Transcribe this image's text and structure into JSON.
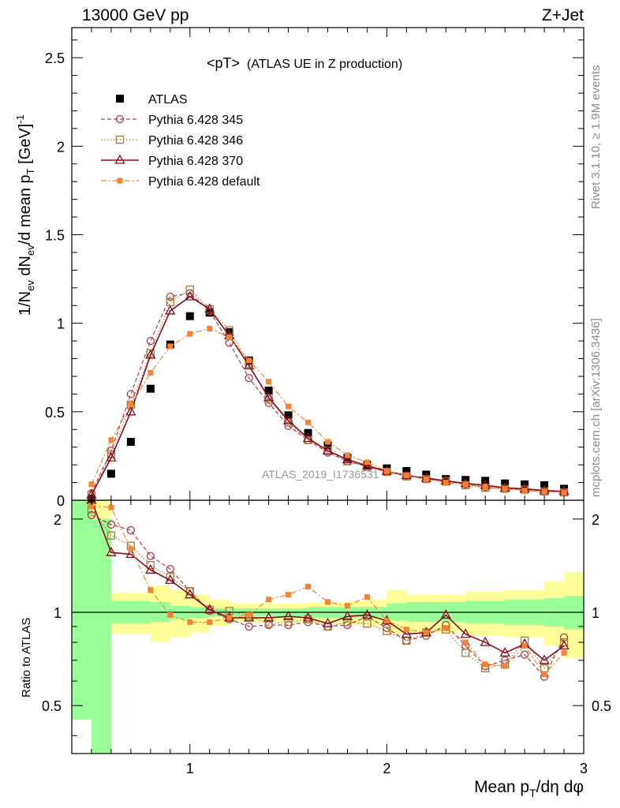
{
  "header": {
    "energy_label": "13000 GeV pp",
    "process_label": "Z+Jet",
    "title": "<pT>",
    "subtitle": "(ATLAS UE in Z production)",
    "rivet_label": "Rivet 3.1.10, ≥ 1.9M events",
    "mcplots_label": "mcplots.cern.ch [arXiv:1306.3436]",
    "analysis_label": "ATLAS_2019_I1736531"
  },
  "axes": {
    "top_ylabel": "1/N_ev dN_ev/d mean p_T [GeV]^-1",
    "bottom_ylabel": "Ratio to ATLAS",
    "xlabel": "Mean p_T/dη dφ",
    "x_ticks": [
      "1",
      "2",
      "3"
    ],
    "top_y_ticks": [
      "0",
      "0.5",
      "1",
      "1.5",
      "2",
      "2.5"
    ],
    "bottom_y_ticks": [
      "0.5",
      "1",
      "2"
    ]
  },
  "legend": {
    "items": [
      {
        "label": "ATLAS",
        "color": "#000000",
        "marker": "square-filled"
      },
      {
        "label": "Pythia 6.428 345",
        "color": "#b03a48",
        "marker": "circle-open"
      },
      {
        "label": "Pythia 6.428 346",
        "color": "#a67c3a",
        "marker": "square-open"
      },
      {
        "label": "Pythia 6.428 370",
        "color": "#8b0a1e",
        "marker": "triangle-open"
      },
      {
        "label": "Pythia 6.428 default",
        "color": "#f58331",
        "marker": "square-filled-small"
      }
    ]
  },
  "chart_data": {
    "type": "line",
    "x": [
      0.5,
      0.6,
      0.7,
      0.8,
      0.9,
      1.0,
      1.1,
      1.2,
      1.3,
      1.4,
      1.5,
      1.6,
      1.7,
      1.8,
      1.9,
      2.0,
      2.1,
      2.2,
      2.3,
      2.4,
      2.5,
      2.6,
      2.7,
      2.8,
      2.9
    ],
    "xlim": [
      0.4,
      3.0
    ],
    "ylim": [
      0,
      2.67
    ],
    "ratio_ylim": [
      0.35,
      2.3
    ],
    "ratio_scale": "log",
    "series": [
      {
        "name": "ATLAS",
        "color": "#000000",
        "marker": "square-filled",
        "line": "none",
        "values": [
          0.01,
          0.15,
          0.33,
          0.63,
          0.88,
          1.04,
          1.06,
          0.95,
          0.79,
          0.62,
          0.48,
          0.38,
          0.31,
          0.24,
          0.2,
          0.18,
          0.165,
          0.145,
          0.12,
          0.115,
          0.11,
          0.095,
          0.09,
          0.085,
          0.065
        ]
      },
      {
        "name": "Pythia 6.428 345",
        "color": "#b03a48",
        "marker": "circle-open",
        "line": "dash",
        "values": [
          0.04,
          0.28,
          0.6,
          0.9,
          1.15,
          1.17,
          1.07,
          0.89,
          0.69,
          0.55,
          0.42,
          0.34,
          0.27,
          0.22,
          0.19,
          0.16,
          0.14,
          0.12,
          0.11,
          0.09,
          0.075,
          0.065,
          0.06,
          0.05,
          0.045
        ]
      },
      {
        "name": "Pythia 6.428 346",
        "color": "#a67c3a",
        "marker": "square-open",
        "line": "dot",
        "values": [
          0.03,
          0.26,
          0.54,
          0.83,
          1.12,
          1.19,
          1.08,
          0.96,
          0.77,
          0.57,
          0.44,
          0.34,
          0.28,
          0.22,
          0.19,
          0.16,
          0.135,
          0.12,
          0.105,
          0.085,
          0.07,
          0.065,
          0.06,
          0.05,
          0.045
        ]
      },
      {
        "name": "Pythia 6.428 370",
        "color": "#8b0a1e",
        "marker": "triangle-open",
        "line": "solid",
        "values": [
          0.03,
          0.24,
          0.5,
          0.82,
          1.07,
          1.15,
          1.08,
          0.93,
          0.76,
          0.58,
          0.45,
          0.35,
          0.28,
          0.23,
          0.195,
          0.165,
          0.14,
          0.125,
          0.11,
          0.095,
          0.085,
          0.07,
          0.065,
          0.055,
          0.05
        ]
      },
      {
        "name": "Pythia 6.428 default",
        "color": "#f58331",
        "marker": "square-filled-small",
        "line": "dashdot",
        "values": [
          0.09,
          0.34,
          0.54,
          0.72,
          0.87,
          0.94,
          0.97,
          0.92,
          0.79,
          0.67,
          0.53,
          0.44,
          0.33,
          0.255,
          0.215,
          0.165,
          0.14,
          0.12,
          0.1,
          0.09,
          0.075,
          0.065,
          0.055,
          0.05,
          0.045
        ]
      }
    ],
    "ratio_series": [
      {
        "name": "Pythia 6.428 345",
        "values": [
          2.06,
          1.92,
          1.84,
          1.52,
          1.38,
          1.17,
          1.01,
          0.95,
          0.9,
          0.91,
          0.91,
          0.93,
          0.9,
          0.91,
          0.97,
          0.89,
          0.81,
          0.84,
          0.91,
          0.78,
          0.67,
          0.7,
          0.73,
          0.62,
          0.83
        ]
      },
      {
        "name": "Pythia 6.428 346",
        "values": [
          2.15,
          1.77,
          1.64,
          1.42,
          1.3,
          1.17,
          1.02,
          1.01,
          0.97,
          0.92,
          0.93,
          0.95,
          0.9,
          0.93,
          0.92,
          0.87,
          0.81,
          0.86,
          0.88,
          0.74,
          0.66,
          0.68,
          0.81,
          0.66,
          0.8
        ]
      },
      {
        "name": "Pythia 6.428 370",
        "values": [
          2.3,
          1.56,
          1.54,
          1.37,
          1.27,
          1.14,
          1.02,
          0.96,
          0.96,
          0.96,
          0.97,
          0.96,
          0.92,
          0.97,
          0.98,
          0.94,
          0.85,
          0.86,
          0.98,
          0.85,
          0.8,
          0.74,
          0.79,
          0.7,
          0.78
        ]
      },
      {
        "name": "Pythia 6.428 default",
        "values": [
          2.2,
          2.18,
          1.6,
          1.18,
          0.98,
          0.93,
          0.93,
          0.96,
          0.98,
          1.1,
          1.14,
          1.21,
          1.08,
          1.05,
          1.12,
          0.94,
          0.88,
          0.86,
          0.89,
          0.8,
          0.68,
          0.67,
          0.78,
          0.63,
          0.74
        ]
      }
    ],
    "band_edges": [
      0.4,
      0.5,
      0.6,
      0.7,
      0.8,
      0.9,
      1.0,
      1.1,
      1.2,
      1.3,
      1.4,
      1.5,
      1.6,
      1.7,
      1.8,
      1.9,
      2.0,
      2.1,
      2.2,
      2.3,
      2.4,
      2.5,
      2.6,
      2.7,
      2.8,
      2.9,
      3.0
    ],
    "band_stat": [
      [
        0.45,
        2.3
      ],
      [
        0.35,
        2.0
      ],
      [
        0.92,
        1.09
      ],
      [
        0.92,
        1.09
      ],
      [
        0.93,
        1.08
      ],
      [
        0.95,
        1.05
      ],
      [
        0.96,
        1.04
      ],
      [
        0.97,
        1.03
      ],
      [
        0.97,
        1.03
      ],
      [
        0.97,
        1.03
      ],
      [
        0.97,
        1.03
      ],
      [
        0.97,
        1.03
      ],
      [
        0.96,
        1.04
      ],
      [
        0.96,
        1.04
      ],
      [
        0.96,
        1.04
      ],
      [
        0.96,
        1.04
      ],
      [
        0.94,
        1.07
      ],
      [
        0.93,
        1.08
      ],
      [
        0.93,
        1.08
      ],
      [
        0.93,
        1.08
      ],
      [
        0.92,
        1.09
      ],
      [
        0.92,
        1.09
      ],
      [
        0.91,
        1.1
      ],
      [
        0.91,
        1.1
      ],
      [
        0.9,
        1.11
      ],
      [
        0.88,
        1.13
      ]
    ],
    "band_total": [
      [
        0.45,
        2.3
      ],
      [
        0.35,
        2.3
      ],
      [
        0.85,
        1.16
      ],
      [
        0.85,
        1.16
      ],
      [
        0.8,
        1.22
      ],
      [
        0.83,
        1.18
      ],
      [
        0.86,
        1.14
      ],
      [
        0.9,
        1.1
      ],
      [
        0.93,
        1.07
      ],
      [
        0.93,
        1.07
      ],
      [
        0.93,
        1.07
      ],
      [
        0.93,
        1.07
      ],
      [
        0.92,
        1.08
      ],
      [
        0.92,
        1.08
      ],
      [
        0.91,
        1.09
      ],
      [
        0.9,
        1.1
      ],
      [
        0.85,
        1.18
      ],
      [
        0.86,
        1.14
      ],
      [
        0.86,
        1.14
      ],
      [
        0.86,
        1.14
      ],
      [
        0.84,
        1.17
      ],
      [
        0.84,
        1.17
      ],
      [
        0.83,
        1.18
      ],
      [
        0.83,
        1.18
      ],
      [
        0.78,
        1.26
      ],
      [
        0.71,
        1.35
      ]
    ]
  }
}
